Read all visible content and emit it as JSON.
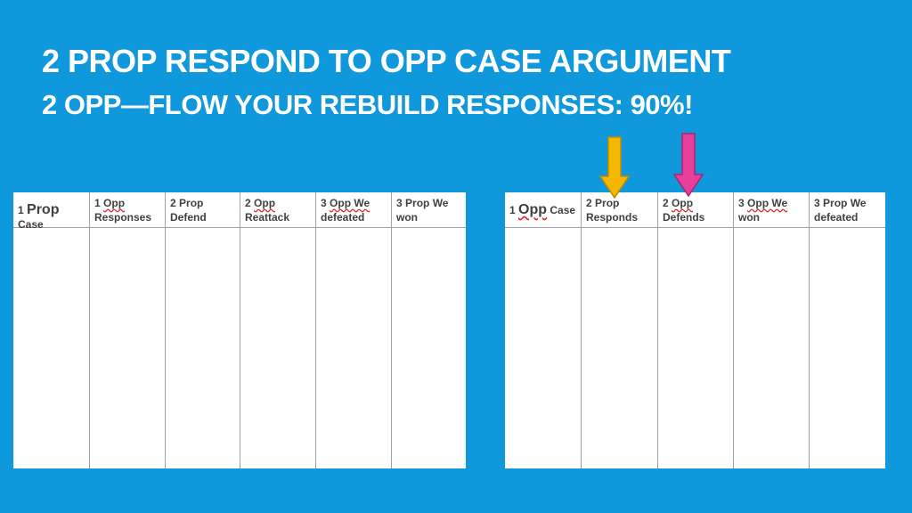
{
  "slide": {
    "title": "2 PROP RESPOND TO OPP CASE ARGUMENT",
    "subtitle": "2 OPP—FLOW YOUR REBUILD RESPONSES: 90%!"
  },
  "left_flow": {
    "columns": [
      {
        "num": "1",
        "word": "Prop",
        "rest": "Case"
      },
      {
        "num": "1",
        "word": "Opp",
        "rest": "Responses"
      },
      {
        "num": "2",
        "word": "Prop",
        "rest": "Defend"
      },
      {
        "num": "2",
        "word": "Opp",
        "rest": "Reattack"
      },
      {
        "num": "3",
        "word": "Opp We",
        "rest": "defeated"
      },
      {
        "num": "3",
        "word": "Prop We",
        "rest": "won"
      }
    ]
  },
  "right_flow": {
    "columns": [
      {
        "num": "1",
        "word": "Opp",
        "rest": "Case"
      },
      {
        "num": "2",
        "word": "Prop",
        "rest": "Responds"
      },
      {
        "num": "2",
        "word": "Opp",
        "rest": "Defends"
      },
      {
        "num": "3",
        "word": "Opp We",
        "rest": "won"
      },
      {
        "num": "3",
        "word": "Prop We",
        "rest": "defeated"
      }
    ]
  },
  "colors": {
    "background": "#1098dc",
    "arrow_prop": "#f5b800",
    "arrow_opp": "#e8409a"
  },
  "icons": [
    "down-arrow-icon",
    "down-arrow-icon"
  ]
}
